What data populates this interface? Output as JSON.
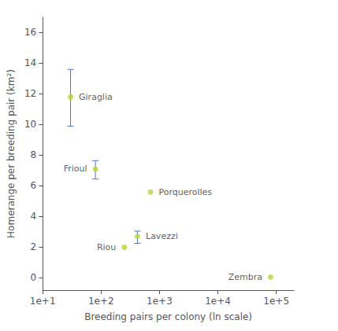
{
  "chart_data": {
    "type": "scatter",
    "xlabel": "Breeding pairs per colony (ln scale)",
    "ylabel": "Homerange per breeding pair (km²)",
    "labels": [
      "Giraglia",
      "Frioul",
      "Porquerolles",
      "Riou",
      "Lavezzi",
      "Zembra"
    ],
    "x": [
      30,
      80,
      700,
      250,
      420,
      80000
    ],
    "values": [
      11.8,
      7.1,
      5.6,
      2.0,
      2.7,
      0.05
    ],
    "yerr_lower": [
      1.9,
      0.65,
      null,
      null,
      0.45,
      null
    ],
    "yerr_upper": [
      1.8,
      0.55,
      null,
      null,
      0.35,
      null
    ],
    "log": "x",
    "xlim": [
      10,
      200000
    ],
    "xticks": [
      {
        "value": 10,
        "label": "1e+1"
      },
      {
        "value": 100,
        "label": "1e+2"
      },
      {
        "value": 1000,
        "label": "1e+3"
      },
      {
        "value": 10000,
        "label": "1e+4"
      },
      {
        "value": 100000,
        "label": "1e+5"
      }
    ],
    "ylim": [
      -0.8,
      17
    ],
    "yticks": [
      0,
      2,
      4,
      6,
      8,
      10,
      12,
      14,
      16
    ],
    "grid": false
  }
}
